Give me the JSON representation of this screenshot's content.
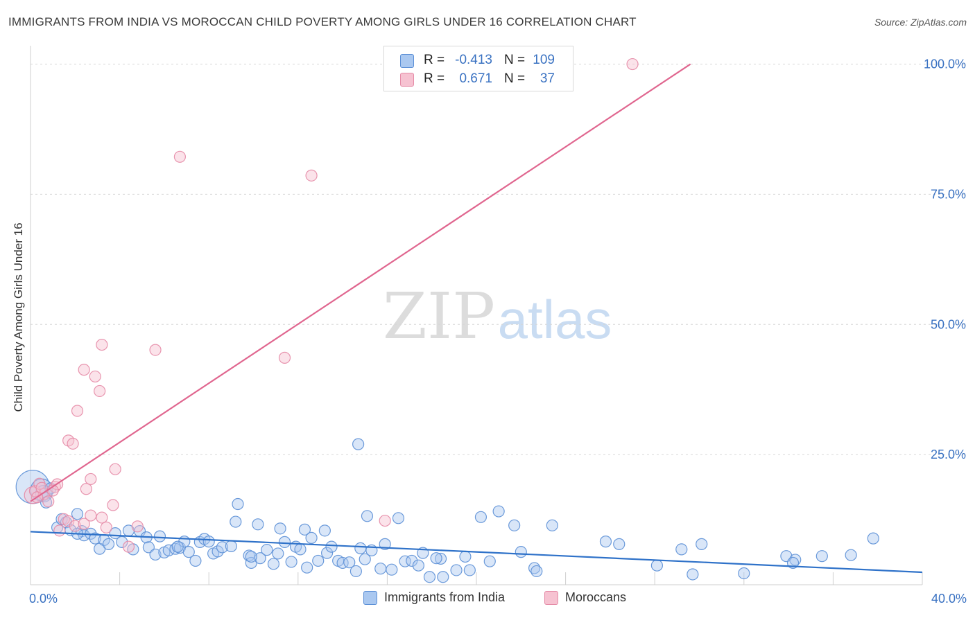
{
  "header": {
    "title": "IMMIGRANTS FROM INDIA VS MOROCCAN CHILD POVERTY AMONG GIRLS UNDER 16 CORRELATION CHART",
    "source": "Source: ZipAtlas.com"
  },
  "legend": {
    "rows": [
      {
        "r_label": "R =",
        "r_value": "-0.413",
        "n_label": "N =",
        "n_value": "109"
      },
      {
        "r_label": "R =",
        "r_value": "0.671",
        "n_label": "N =",
        "n_value": "37"
      }
    ]
  },
  "bottom_legend": {
    "india_label": "Immigrants from India",
    "moroccans_label": "Moroccans"
  },
  "colors": {
    "india_fill": "#aac8f0",
    "india_stroke": "#5b8fd6",
    "india_line": "#2f72c9",
    "moroccan_fill": "#f6c2d1",
    "moroccan_stroke": "#e58aa6",
    "moroccan_line": "#e0668f",
    "tick_label": "#3a72c2",
    "grid": "#d6d6d6"
  },
  "chart_data": {
    "type": "scatter",
    "title": "IMMIGRANTS FROM INDIA VS MOROCCAN CHILD POVERTY AMONG GIRLS UNDER 16 CORRELATION CHART",
    "xlabel": "",
    "ylabel": "Child Poverty Among Girls Under 16",
    "xlim": [
      0,
      40
    ],
    "ylim": [
      0,
      103
    ],
    "x_tick_labels": [
      {
        "value": 0,
        "label": "0.0%"
      },
      {
        "value": 40,
        "label": "40.0%"
      }
    ],
    "y_tick_labels": [
      {
        "value": 25,
        "label": "25.0%"
      },
      {
        "value": 50,
        "label": "50.0%"
      },
      {
        "value": 75,
        "label": "75.0%"
      },
      {
        "value": 100,
        "label": "100.0%"
      }
    ],
    "watermark": {
      "part1": "ZIP",
      "part2": "atlas"
    },
    "series": [
      {
        "name": "Immigrants from India",
        "trend": {
          "x0": 0,
          "y0": 10.2,
          "x1": 40,
          "y1": 2.4
        },
        "points": [
          [
            0.1,
            18.8,
            3
          ],
          [
            0.5,
            18.2,
            2
          ],
          [
            0.6,
            17.5,
            1.5
          ],
          [
            0.7,
            15.8,
            1
          ],
          [
            0.9,
            18.5,
            1
          ],
          [
            1.2,
            11.0,
            1
          ],
          [
            1.4,
            12.6,
            1
          ],
          [
            1.6,
            12.0,
            1
          ],
          [
            1.8,
            10.5,
            1
          ],
          [
            2.1,
            13.6,
            1
          ],
          [
            2.3,
            10.3,
            1
          ],
          [
            2.4,
            9.5,
            1
          ],
          [
            2.7,
            9.8,
            1
          ],
          [
            2.9,
            8.9,
            1
          ],
          [
            3.1,
            6.9,
            1
          ],
          [
            3.3,
            8.6,
            1
          ],
          [
            3.5,
            7.8,
            1
          ],
          [
            3.8,
            9.9,
            1
          ],
          [
            4.1,
            8.2,
            1
          ],
          [
            4.4,
            10.4,
            1
          ],
          [
            4.6,
            6.8,
            1
          ],
          [
            4.9,
            10.3,
            1
          ],
          [
            5.2,
            9.1,
            1
          ],
          [
            5.3,
            7.2,
            1
          ],
          [
            5.6,
            5.8,
            1
          ],
          [
            5.8,
            9.3,
            1
          ],
          [
            6.0,
            6.2,
            1
          ],
          [
            6.2,
            6.6,
            1
          ],
          [
            6.5,
            6.9,
            1
          ],
          [
            6.7,
            7.1,
            1
          ],
          [
            6.9,
            8.3,
            1
          ],
          [
            7.1,
            6.3,
            1
          ],
          [
            7.4,
            4.6,
            1
          ],
          [
            7.6,
            8.2,
            1
          ],
          [
            7.8,
            8.8,
            1
          ],
          [
            8.0,
            8.3,
            1
          ],
          [
            8.2,
            6.0,
            1
          ],
          [
            8.4,
            6.4,
            1
          ],
          [
            8.6,
            7.2,
            1
          ],
          [
            9.0,
            7.4,
            1
          ],
          [
            9.3,
            15.5,
            1
          ],
          [
            9.2,
            12.1,
            1
          ],
          [
            9.8,
            5.6,
            1
          ],
          [
            9.9,
            4.2,
            1
          ],
          [
            10.2,
            11.6,
            1
          ],
          [
            10.3,
            5.1,
            1
          ],
          [
            10.6,
            6.7,
            1
          ],
          [
            10.9,
            4.0,
            1
          ],
          [
            11.1,
            6.0,
            1
          ],
          [
            11.2,
            10.8,
            1
          ],
          [
            11.4,
            8.2,
            1
          ],
          [
            11.7,
            4.4,
            1
          ],
          [
            11.9,
            7.3,
            1
          ],
          [
            12.1,
            6.8,
            1
          ],
          [
            12.3,
            10.6,
            1
          ],
          [
            12.4,
            3.3,
            1
          ],
          [
            12.6,
            9.0,
            1
          ],
          [
            12.9,
            4.6,
            1
          ],
          [
            13.2,
            10.4,
            1
          ],
          [
            13.3,
            6.1,
            1
          ],
          [
            13.5,
            7.3,
            1
          ],
          [
            13.8,
            4.6,
            1
          ],
          [
            14.0,
            4.2,
            1
          ],
          [
            14.3,
            4.3,
            1
          ],
          [
            14.6,
            2.6,
            1
          ],
          [
            14.8,
            7.0,
            1
          ],
          [
            15.0,
            4.9,
            1
          ],
          [
            15.1,
            13.2,
            1
          ],
          [
            15.3,
            6.6,
            1
          ],
          [
            15.7,
            3.1,
            1
          ],
          [
            15.9,
            7.8,
            1
          ],
          [
            16.2,
            2.9,
            1
          ],
          [
            16.5,
            12.8,
            1
          ],
          [
            16.8,
            4.5,
            1
          ],
          [
            17.1,
            4.6,
            1
          ],
          [
            17.4,
            3.7,
            1
          ],
          [
            17.6,
            6.1,
            1
          ],
          [
            17.9,
            1.5,
            1
          ],
          [
            18.4,
            5.0,
            1
          ],
          [
            18.5,
            1.5,
            1
          ],
          [
            19.1,
            2.8,
            1
          ],
          [
            19.5,
            5.4,
            1
          ],
          [
            19.7,
            2.8,
            1
          ],
          [
            20.2,
            13.0,
            1
          ],
          [
            20.6,
            4.5,
            1
          ],
          [
            21.0,
            14.1,
            1
          ],
          [
            21.7,
            11.4,
            1
          ],
          [
            22.0,
            6.3,
            1
          ],
          [
            22.6,
            3.2,
            1
          ],
          [
            22.7,
            2.6,
            1
          ],
          [
            23.4,
            11.4,
            1
          ],
          [
            25.8,
            8.3,
            1
          ],
          [
            26.4,
            7.8,
            1
          ],
          [
            28.1,
            3.7,
            1
          ],
          [
            29.2,
            6.8,
            1
          ],
          [
            29.7,
            2.0,
            1
          ],
          [
            30.1,
            7.8,
            1
          ],
          [
            32.0,
            2.2,
            1
          ],
          [
            33.9,
            5.5,
            1
          ],
          [
            34.3,
            4.8,
            1
          ],
          [
            34.2,
            4.2,
            1
          ],
          [
            35.5,
            5.5,
            1
          ],
          [
            36.8,
            5.7,
            1
          ],
          [
            37.8,
            8.9,
            1
          ],
          [
            14.7,
            27.0,
            1
          ],
          [
            2.1,
            9.8,
            1
          ],
          [
            6.6,
            7.3,
            1
          ],
          [
            9.9,
            5.4,
            1
          ],
          [
            18.2,
            5.1,
            1
          ]
        ]
      },
      {
        "name": "Moroccans",
        "trend": {
          "x0": 0,
          "y0": 16.0,
          "x1": 29.6,
          "y1": 100.0
        },
        "points": [
          [
            0.1,
            17.2,
            1.5
          ],
          [
            0.2,
            18.0,
            1
          ],
          [
            0.4,
            19.4,
            1
          ],
          [
            0.6,
            17.4,
            1
          ],
          [
            0.8,
            16.0,
            1
          ],
          [
            1.1,
            18.8,
            1
          ],
          [
            1.2,
            19.3,
            1
          ],
          [
            1.3,
            10.4,
            1
          ],
          [
            1.5,
            12.6,
            1
          ],
          [
            1.7,
            12.2,
            1
          ],
          [
            2.0,
            11.3,
            1
          ],
          [
            2.4,
            11.7,
            1
          ],
          [
            1.7,
            27.7,
            1
          ],
          [
            1.9,
            27.1,
            1
          ],
          [
            2.1,
            33.4,
            1
          ],
          [
            2.4,
            41.3,
            1
          ],
          [
            2.9,
            40.0,
            1
          ],
          [
            3.1,
            37.2,
            1
          ],
          [
            3.2,
            46.1,
            1
          ],
          [
            2.5,
            18.4,
            1
          ],
          [
            2.7,
            20.3,
            1
          ],
          [
            2.7,
            13.3,
            1
          ],
          [
            3.2,
            12.9,
            1
          ],
          [
            3.4,
            11.0,
            1
          ],
          [
            3.7,
            15.3,
            1
          ],
          [
            3.8,
            22.2,
            1
          ],
          [
            4.4,
            7.3,
            1
          ],
          [
            4.8,
            11.2,
            1
          ],
          [
            5.6,
            45.1,
            1
          ],
          [
            6.7,
            82.2,
            1
          ],
          [
            11.4,
            43.6,
            1
          ],
          [
            12.6,
            78.6,
            1
          ],
          [
            15.9,
            12.3,
            1
          ],
          [
            27.0,
            100.0,
            1
          ],
          [
            0.3,
            16.8,
            1
          ],
          [
            1.0,
            18.1,
            1
          ],
          [
            0.5,
            18.6,
            1
          ]
        ]
      }
    ]
  },
  "axes": {
    "ylabel": "Child Poverty Among Girls Under 16"
  }
}
